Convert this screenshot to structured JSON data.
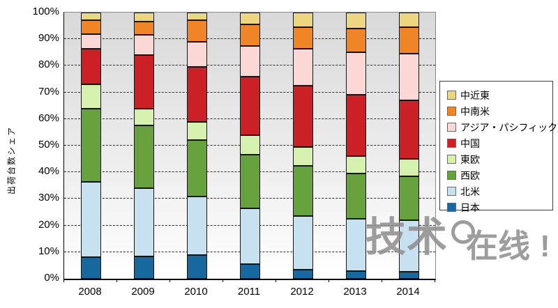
{
  "chart": {
    "y_axis_title": "出荷台数シェア",
    "y_tick_labels": [
      "100%",
      "90%",
      "80%",
      "70%",
      "60%",
      "50%",
      "40%",
      "30%",
      "20%",
      "10%",
      "0%"
    ],
    "plot_bg_top_color": "#d9d9d9",
    "plot_bg_bottom_color": "#ffffff",
    "gridline_style": "dashed"
  },
  "watermark": {
    "part1": "技术",
    "icon": "magnifier-ring",
    "part2": "在线",
    "exclaim": "！",
    "color": "#8d8d8d"
  },
  "chart_data": {
    "type": "bar",
    "stacked": true,
    "percent_stacked": true,
    "title": "",
    "xlabel": "",
    "ylabel": "出荷台数シェア",
    "ylim": [
      0,
      100
    ],
    "y_tick_step": 10,
    "grid": true,
    "legend_position": "right",
    "legend_order_top_to_bottom": [
      "中近東",
      "中南米",
      "アジア・パシフィック",
      "中国",
      "東欧",
      "西欧",
      "北米",
      "日本"
    ],
    "categories": [
      "2008",
      "2009",
      "2010",
      "2011",
      "2012",
      "2013",
      "2014"
    ],
    "series": [
      {
        "name": "日本",
        "color": "#16689f",
        "values": [
          8,
          8.5,
          9,
          5.5,
          3.5,
          3,
          2.5
        ]
      },
      {
        "name": "北米",
        "color": "#c8e1f1",
        "values": [
          28.5,
          25.5,
          22,
          21,
          20,
          19.5,
          19.5
        ]
      },
      {
        "name": "西欧",
        "color": "#67a23e",
        "values": [
          27.5,
          23.5,
          21,
          20,
          19,
          17,
          16.5
        ]
      },
      {
        "name": "東欧",
        "color": "#d6f0ae",
        "values": [
          9,
          6.5,
          7,
          7.5,
          7,
          6.5,
          6.5
        ]
      },
      {
        "name": "中国",
        "color": "#cb2026",
        "values": [
          13.5,
          20,
          20.5,
          22,
          23,
          23,
          22
        ]
      },
      {
        "name": "アジア・パシフィック",
        "color": "#fbd8d6",
        "values": [
          5.5,
          7.5,
          9.5,
          11.5,
          14,
          16,
          17.5
        ]
      },
      {
        "name": "中南米",
        "color": "#f08527",
        "values": [
          5,
          5,
          8,
          8,
          8,
          9,
          10
        ]
      },
      {
        "name": "中近東",
        "color": "#ecd67f",
        "values": [
          3,
          3.5,
          3,
          4.5,
          5.5,
          6,
          5.5
        ]
      }
    ]
  }
}
